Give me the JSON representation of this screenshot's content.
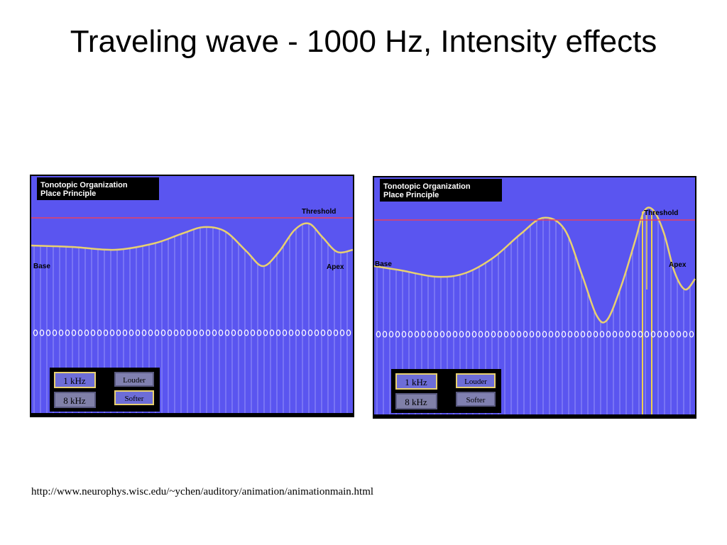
{
  "slide": {
    "title": "Traveling wave - 1000 Hz, Intensity effects",
    "source_url": "http://www.neurophys.wisc.edu/~ychen/auditory/animation/animationmain.html"
  },
  "panels": [
    {
      "header_line1": "Tonotopic Organization",
      "header_line2": "Place Principle",
      "threshold_label": "Threshold",
      "base_label": "Base",
      "apex_label": "Apex",
      "btn_1khz": "1 kHz",
      "btn_8khz": "8 kHz",
      "btn_louder": "Louder",
      "btn_softer": "Softer",
      "selected_intensity": "softer",
      "threshold_crossed": false
    },
    {
      "header_line1": "Tonotopic Organization",
      "header_line2": "Place Principle",
      "threshold_label": "Threshold",
      "base_label": "Base",
      "apex_label": "Apex",
      "btn_1khz": "1 kHz",
      "btn_8khz": "8 kHz",
      "btn_louder": "Louder",
      "btn_softer": "Softer",
      "selected_intensity": "louder",
      "threshold_crossed": true
    }
  ],
  "colors": {
    "background_blue": "#5a55f0",
    "threshold_line": "#e84060",
    "wave_line": "#e8d070",
    "fiber_line": "#c8c8ff",
    "highlight_fiber": "#f0d050",
    "panel_border": "#000000"
  }
}
